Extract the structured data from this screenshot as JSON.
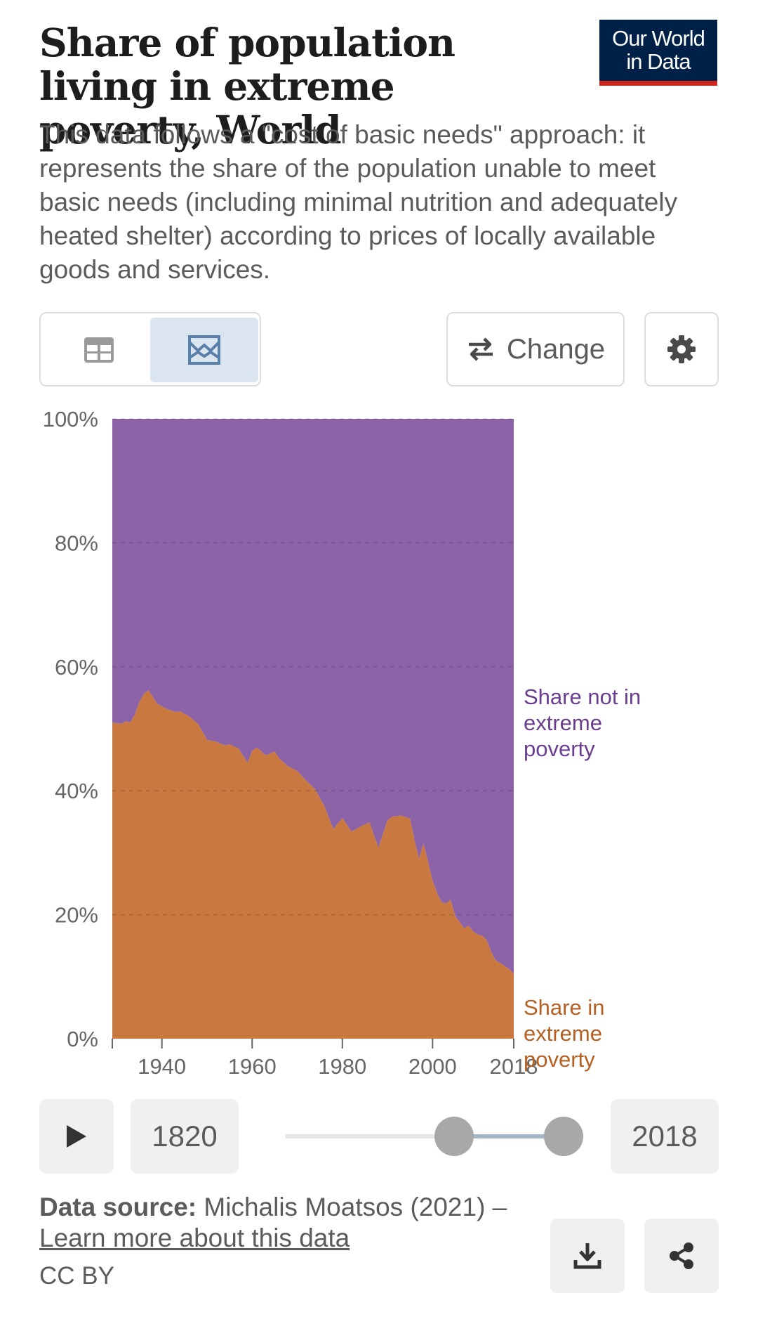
{
  "header": {
    "title": "Share of population living in extreme poverty, World",
    "subtitle": "This data follows a \"cost of basic needs\" approach: it represents the share of the population unable to meet basic needs (including minimal nutrition and adequately heated shelter) according to prices of locally available goods and services.",
    "logo_line1": "Our World",
    "logo_line2": "in Data"
  },
  "toolbar": {
    "table_icon": "table-icon",
    "chart_icon": "chart-icon",
    "change_label": "Change",
    "change_icon": "swap-arrows-icon",
    "settings_icon": "gear-icon"
  },
  "chart_data": {
    "type": "area",
    "stacked": true,
    "relative": true,
    "x": [
      1929,
      1931,
      1932,
      1933,
      1934,
      1935,
      1936,
      1937,
      1939,
      1941,
      1943,
      1944,
      1946,
      1948,
      1950,
      1952,
      1954,
      1955,
      1957,
      1959,
      1960,
      1961,
      1963,
      1965,
      1966,
      1968,
      1970,
      1972,
      1974,
      1976,
      1978,
      1980,
      1982,
      1984,
      1986,
      1988,
      1990,
      1991,
      1993,
      1995,
      1996,
      1997,
      1998,
      1999,
      2000,
      2001,
      2002,
      2003,
      2004,
      2005,
      2006,
      2007,
      2008,
      2009,
      2010,
      2011,
      2012,
      2013,
      2014,
      2015,
      2016,
      2017,
      2018
    ],
    "series": [
      {
        "name": "Share in extreme poverty",
        "color": "#c9783f",
        "label_color": "#b65f23",
        "values": [
          51,
          50.8,
          51.2,
          51,
          52.3,
          54.3,
          55.6,
          56.2,
          54,
          53.2,
          52.7,
          52.8,
          52,
          50.8,
          48.2,
          47.9,
          47.3,
          47.5,
          46.8,
          44.5,
          46.4,
          47,
          45.7,
          46.3,
          45.2,
          43.9,
          43.2,
          41.6,
          40.2,
          37.5,
          33.8,
          35.6,
          33.4,
          34.2,
          34.9,
          30.8,
          35.2,
          35.8,
          36,
          35.5,
          32,
          29,
          31.5,
          28.5,
          25.5,
          23.5,
          22,
          21.8,
          22.4,
          19.8,
          18.8,
          17.8,
          18.2,
          17.3,
          16.8,
          16.6,
          15.9,
          14,
          12.6,
          12.2,
          11.7,
          11.2,
          10.5
        ]
      },
      {
        "name": "Share not in extreme poverty",
        "color": "#8b63a6",
        "label_color": "#6a3d8f",
        "values": [
          49,
          49.2,
          48.8,
          49,
          47.7,
          45.7,
          44.4,
          43.8,
          46,
          46.8,
          47.3,
          47.2,
          48,
          49.2,
          51.8,
          52.1,
          52.7,
          52.5,
          53.2,
          55.5,
          53.6,
          53,
          54.3,
          53.7,
          54.8,
          56.1,
          56.8,
          58.4,
          59.8,
          62.5,
          66.2,
          64.4,
          66.6,
          65.8,
          65.1,
          69.2,
          64.8,
          64.2,
          64,
          64.5,
          68,
          71,
          68.5,
          71.5,
          74.5,
          76.5,
          78,
          78.2,
          77.6,
          80.2,
          81.2,
          82.2,
          81.8,
          82.7,
          83.2,
          83.4,
          84.1,
          86,
          87.4,
          87.8,
          88.3,
          88.8,
          89.5
        ]
      }
    ],
    "series_labels": [
      [
        "Share not in",
        "extreme",
        "poverty"
      ],
      [
        "Share in",
        "extreme",
        "poverty"
      ]
    ],
    "xlim": [
      1929,
      2018
    ],
    "ylim": [
      0,
      100
    ],
    "x_ticks": [
      "1940",
      "1960",
      "1980",
      "2000",
      "2018"
    ],
    "x_tick_values": [
      1940,
      1960,
      1980,
      2000,
      2018
    ],
    "y_ticks": [
      "0%",
      "20%",
      "40%",
      "60%",
      "80%",
      "100%"
    ],
    "y_tick_values": [
      0,
      20,
      40,
      60,
      80,
      100
    ],
    "grid": true,
    "legend": "right"
  },
  "timeline": {
    "play_icon": "play-icon",
    "start_year": "1820",
    "end_year": "2018"
  },
  "footer": {
    "source_label": "Data source:",
    "source_text": "Michalis Moatsos (2021) –",
    "learn_more": "Learn more about this data",
    "license": "CC BY",
    "download_icon": "download-icon",
    "share_icon": "share-icon"
  }
}
